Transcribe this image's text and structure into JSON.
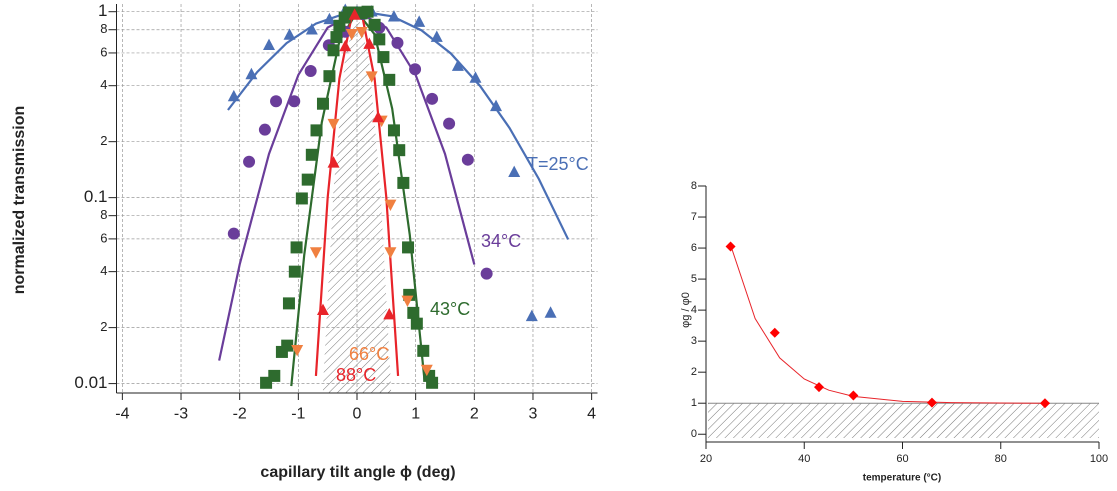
{
  "chart_data": [
    {
      "type": "scatter",
      "ylog": true,
      "grid": true,
      "xlabel": "capillary tilt angle ϕ (deg)",
      "ylabel": "normalized transmission",
      "xlim": [
        -4.1,
        4.1
      ],
      "ylim": [
        0.0089,
        1.1
      ],
      "xticks": [
        -4,
        -3,
        -2,
        -1,
        0,
        1,
        2,
        3,
        4
      ],
      "yticks": [
        1,
        {
          "value": 0.8,
          "label": "8"
        },
        {
          "value": 0.6,
          "label": "6"
        },
        {
          "value": 0.4,
          "label": "4"
        },
        {
          "value": 0.2,
          "label": "2"
        },
        0.1,
        {
          "value": 0.08,
          "label": "8"
        },
        {
          "value": 0.06,
          "label": "6"
        },
        {
          "value": 0.04,
          "label": "4"
        },
        {
          "value": 0.02,
          "label": "2"
        },
        0.01
      ],
      "series": [
        {
          "name": "T=25°C",
          "color": "#4a6fb5",
          "marker": "triangle",
          "x": [
            -2.1,
            -1.8,
            -1.5,
            -1.15,
            -0.77,
            -0.47,
            -0.2,
            0.0,
            0.25,
            0.63,
            1.06,
            1.36,
            1.72,
            2.02,
            2.37,
            2.68,
            2.98,
            3.3
          ],
          "values": [
            0.35,
            0.46,
            0.66,
            0.75,
            0.8,
            0.91,
            1.02,
            1.0,
            1.0,
            0.94,
            0.88,
            0.73,
            0.51,
            0.44,
            0.31,
            0.137,
            0.023,
            0.024
          ]
        },
        {
          "name": "34°C",
          "color": "#6a3d9a",
          "marker": "circle",
          "x": [
            -2.1,
            -1.84,
            -1.57,
            -1.38,
            -1.07,
            -0.79,
            -0.48,
            -0.2,
            0.1,
            0.38,
            0.69,
            0.99,
            1.28,
            1.57,
            1.89,
            2.21
          ],
          "values": [
            0.064,
            0.156,
            0.232,
            0.33,
            0.33,
            0.48,
            0.66,
            0.78,
            0.97,
            0.82,
            0.68,
            0.49,
            0.34,
            0.25,
            0.16,
            0.039
          ]
        },
        {
          "name": "43°C",
          "color": "#2e6b2e",
          "marker": "square",
          "x": [
            -1.55,
            -1.41,
            -1.28,
            -1.19,
            -1.16,
            -1.06,
            -1.03,
            -0.94,
            -0.84,
            -0.77,
            -0.69,
            -0.58,
            -0.47,
            -0.4,
            -0.35,
            -0.3,
            -0.21,
            -0.14,
            -0.06,
            0.01,
            0.08,
            0.18,
            0.3,
            0.38,
            0.45,
            0.55,
            0.63,
            0.72,
            0.79,
            0.87,
            0.89,
            0.96,
            1.02,
            1.13,
            1.23,
            1.28
          ],
          "values": [
            0.0101,
            0.011,
            0.0148,
            0.016,
            0.027,
            0.04,
            0.054,
            0.099,
            0.125,
            0.17,
            0.23,
            0.32,
            0.45,
            0.62,
            0.73,
            0.84,
            0.93,
            0.99,
            0.99,
            0.99,
            0.98,
            1.0,
            0.85,
            0.71,
            0.57,
            0.43,
            0.23,
            0.18,
            0.12,
            0.054,
            0.03,
            0.024,
            0.021,
            0.015,
            0.011,
            0.0101
          ]
        },
        {
          "name": "66°C",
          "color": "#f08040",
          "marker": "triangle-down",
          "x": [
            -1.02,
            -0.7,
            -0.4,
            -0.09,
            0.08,
            0.25,
            0.42,
            0.57,
            0.57,
            0.86,
            1.19
          ],
          "values": [
            0.0152,
            0.051,
            0.25,
            0.76,
            0.78,
            0.45,
            0.26,
            0.092,
            0.051,
            0.028,
            0.0119
          ]
        },
        {
          "name": "88°C",
          "color": "#e8242a",
          "marker": "triangle",
          "x": [
            -0.58,
            -0.4,
            -0.2,
            -0.04,
            0.21,
            0.36,
            0.55
          ],
          "values": [
            0.0248,
            0.154,
            0.65,
            0.96,
            0.67,
            0.27,
            0.0235
          ]
        }
      ],
      "fits": [
        {
          "color": "#4a6fb5",
          "x": [
            -2.2,
            -1.7,
            -1.2,
            -0.7,
            -0.2,
            0.1,
            0.6,
            1.1,
            1.6,
            2.1,
            2.6,
            3.1,
            3.6
          ],
          "values": [
            0.296,
            0.474,
            0.678,
            0.863,
            0.979,
            1.0,
            0.944,
            0.794,
            0.596,
            0.398,
            0.237,
            0.126,
            0.0596
          ]
        },
        {
          "color": "#6a3d9a",
          "x": [
            -2.35,
            -2,
            -1.5,
            -1,
            -0.5,
            0,
            0.5,
            1,
            1.5,
            2
          ],
          "values": [
            0.0133,
            0.0437,
            0.172,
            0.457,
            0.822,
            1.0,
            0.822,
            0.457,
            0.172,
            0.0437
          ]
        },
        {
          "color": "#2e6b2e",
          "x": [
            -1.12,
            -0.9,
            -0.6,
            -0.3,
            0,
            0.3,
            0.6,
            0.9,
            1.15
          ],
          "values": [
            0.0097,
            0.049,
            0.254,
            0.694,
            0.999,
            0.756,
            0.301,
            0.063,
            0.0105
          ]
        },
        {
          "color": "#e8242a",
          "x": [
            -0.7,
            -0.5,
            -0.3,
            -0.1,
            0,
            0.1,
            0.3,
            0.5,
            0.7
          ],
          "values": [
            0.011,
            0.1,
            0.437,
            0.912,
            1.0,
            0.912,
            0.437,
            0.1,
            0.011
          ]
        }
      ],
      "hatch": {
        "x": [
          -0.58,
          -0.4,
          -0.2,
          0,
          0.2,
          0.4,
          0.58
        ],
        "values": [
          0.0096,
          0.11,
          0.575,
          1.0,
          0.575,
          0.11,
          0.0096
        ]
      }
    },
    {
      "type": "scatter",
      "xlabel": "temperature (°C)",
      "ylabel": "φg / φ0",
      "xlim": [
        20,
        100
      ],
      "ylim": [
        -0.25,
        8
      ],
      "xticks": [
        20,
        40,
        60,
        80,
        100
      ],
      "yticks": [
        0,
        1,
        2,
        3,
        4,
        5,
        6,
        7,
        8
      ],
      "series": [
        {
          "color": "#ff0000",
          "marker": "diamond",
          "x": [
            25,
            34,
            43,
            50,
            66,
            89
          ],
          "values": [
            6.05,
            3.27,
            1.52,
            1.25,
            1.02,
            1.0
          ]
        }
      ],
      "fits": [
        {
          "color": "#e8242a",
          "x": [
            25,
            30,
            35,
            40,
            45,
            50,
            60,
            70,
            80,
            90
          ],
          "values": [
            6.1,
            3.73,
            2.46,
            1.78,
            1.42,
            1.22,
            1.06,
            1.02,
            1.005,
            1.0
          ]
        }
      ],
      "hatch_max": 1
    }
  ]
}
